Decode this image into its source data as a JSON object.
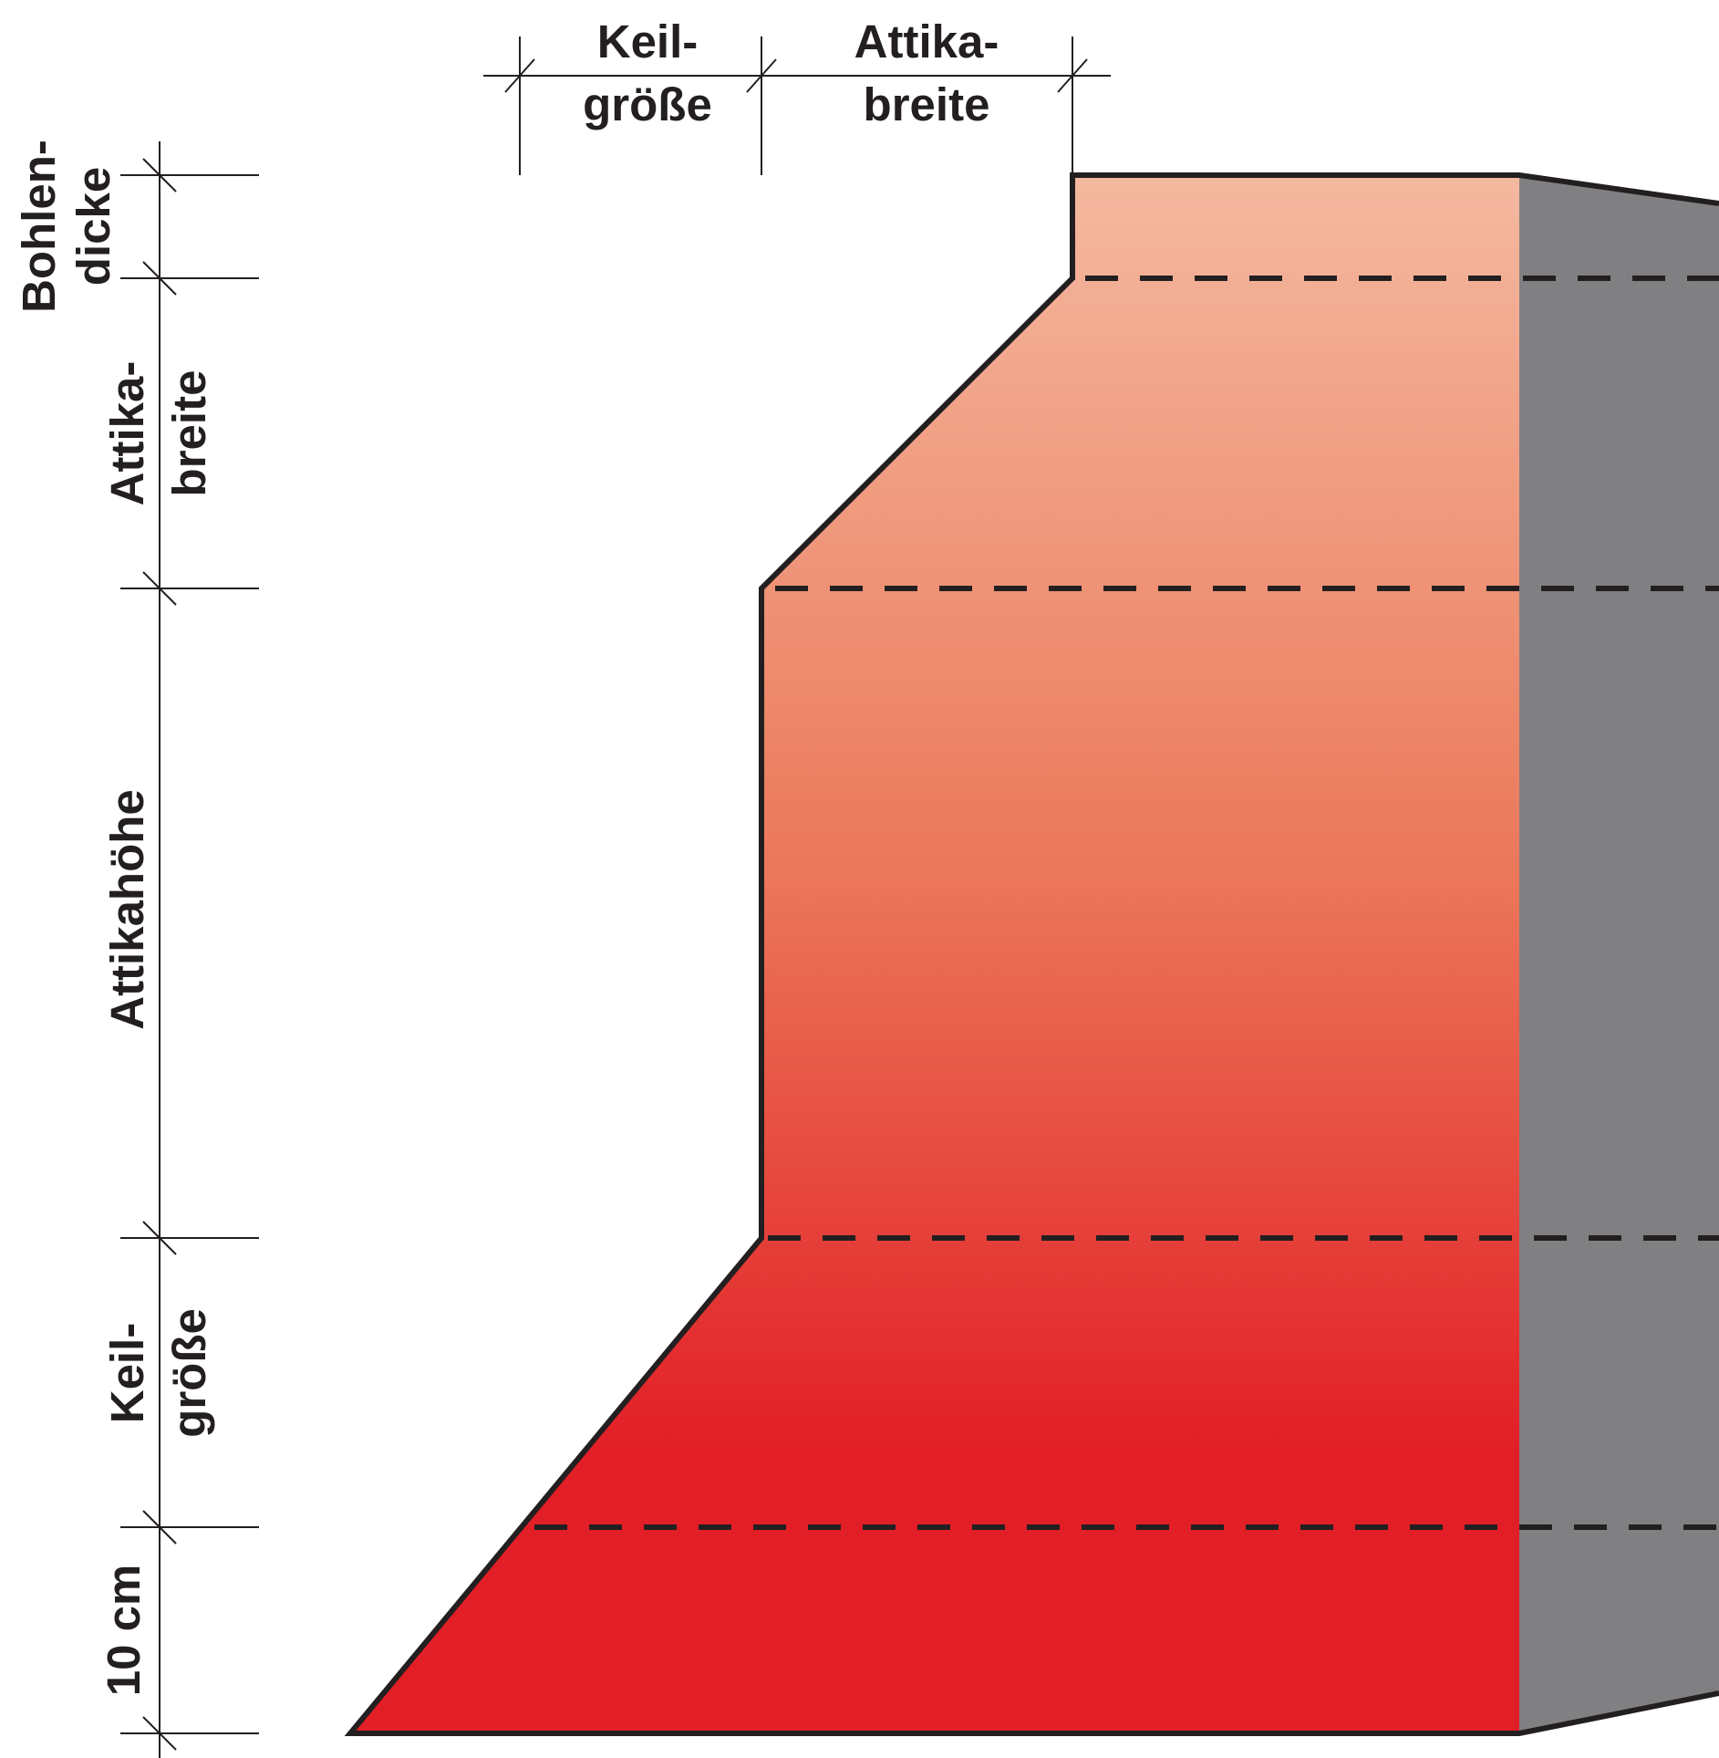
{
  "top_dimensions": {
    "keil_line1": "Keil-",
    "keil_line2": "größe",
    "attika_line1": "Attika-",
    "attika_line2": "breite"
  },
  "left_dimensions": {
    "bohlen_line1": "Bohlen-",
    "bohlen_line2": "dicke",
    "attika_line1": "Attika-",
    "attika_line2": "breite",
    "attikahoehe": "Attikahöhe",
    "keil_line1": "Keil-",
    "keil_line2": "größe",
    "ten_cm": "10 cm"
  },
  "colors": {
    "gradient_top": "#f4b9a0",
    "gradient_mid": "#eb7759",
    "gradient_bottom": "#e21e26",
    "side_face": "#808083",
    "outline": "#231f20"
  }
}
